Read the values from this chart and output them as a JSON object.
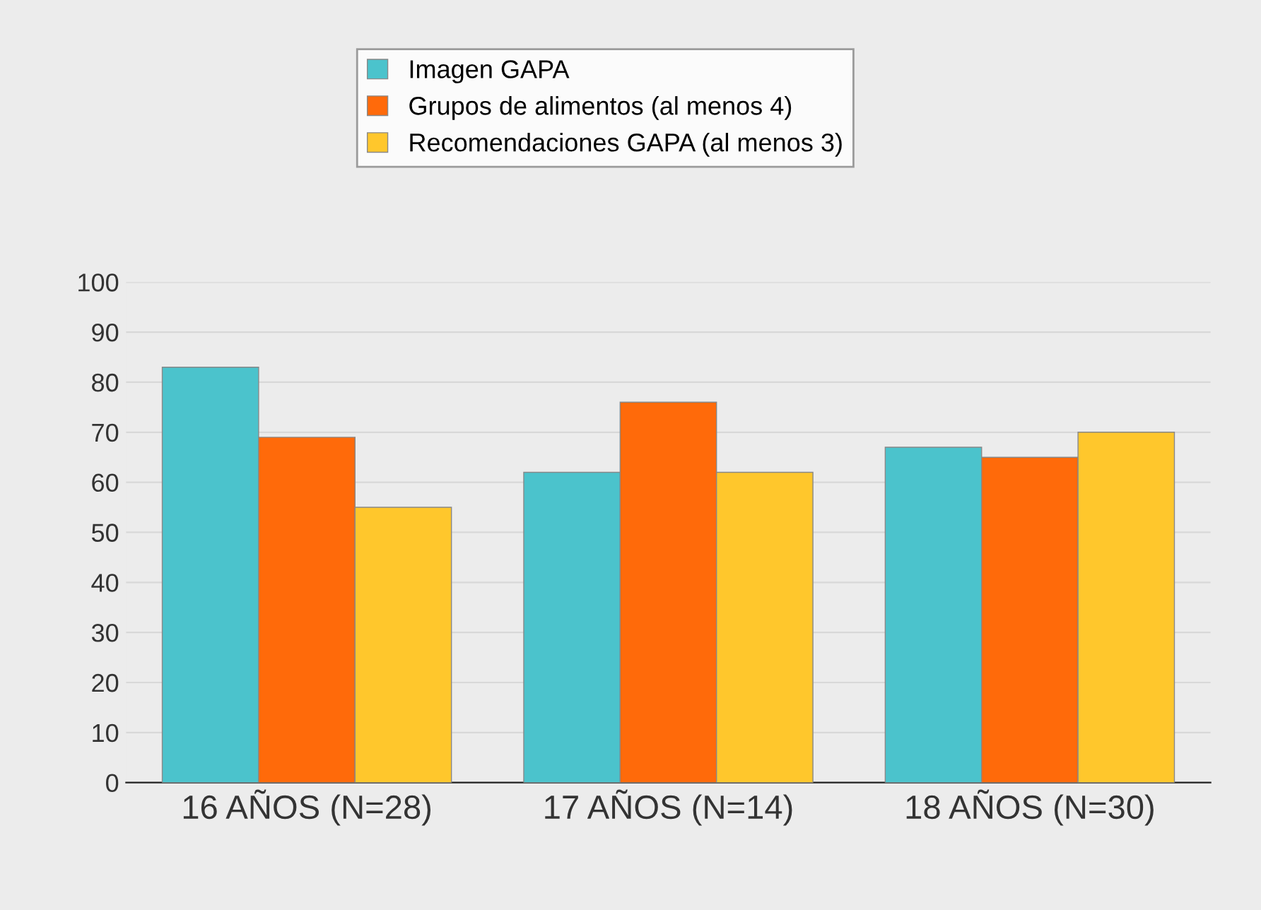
{
  "chart_data": {
    "type": "bar",
    "categories": [
      "16 AÑOS (N=28)",
      "17 AÑOS (N=14)",
      "18 AÑOS (N=30)"
    ],
    "series": [
      {
        "name": "Imagen GAPA",
        "color": "#4bc3cc",
        "values": [
          83,
          62,
          67
        ]
      },
      {
        "name": "Grupos de alimentos (al menos 4)",
        "color": "#ff6a0a",
        "values": [
          69,
          76,
          65
        ]
      },
      {
        "name": "Recomendaciones GAPA (al menos 3)",
        "color": "#ffc72c",
        "values": [
          55,
          62,
          70
        ]
      }
    ],
    "ylim": [
      0,
      100
    ],
    "yticks": [
      0,
      10,
      20,
      30,
      40,
      50,
      60,
      70,
      80,
      90,
      100
    ],
    "grid": "y",
    "legend": "top"
  }
}
